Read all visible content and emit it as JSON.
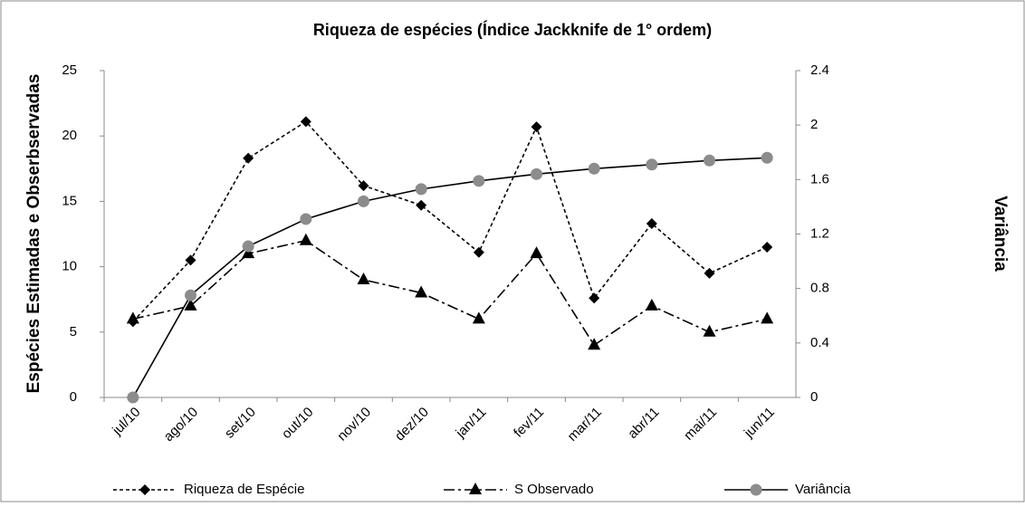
{
  "chart_data": {
    "type": "line",
    "title": "Riqueza de espécies (Índice Jackknife de 1° ordem)",
    "y_label": "Espécies Estimadas e Obserbservadas",
    "y2_label": "Variância",
    "categories": [
      "jul/10",
      "ago/10",
      "set/10",
      "out/10",
      "nov/10",
      "dez/10",
      "jan/11",
      "fev/11",
      "mar/11",
      "abr/11",
      "mai/11",
      "jun/11"
    ],
    "series": [
      {
        "name": "Riqueza de Espécie",
        "color": "#000000",
        "marker": "diamond",
        "dash": "dashed",
        "values": [
          5.8,
          10.5,
          18.3,
          21.1,
          16.2,
          14.7,
          11.1,
          20.7,
          7.6,
          13.3,
          9.5,
          11.5
        ]
      },
      {
        "name": "S Observado",
        "color": "#000000",
        "marker": "triangle",
        "dash": "dashdot",
        "values": [
          6,
          7,
          11,
          12,
          9,
          8,
          6,
          11,
          4,
          7,
          5,
          6
        ]
      },
      {
        "name": "Variância",
        "color": "#000000",
        "marker_color": "#8c8c8c",
        "marker": "circle",
        "dash": "solid",
        "axis": "y2",
        "values": [
          0,
          0.75,
          1.11,
          1.31,
          1.44,
          1.53,
          1.59,
          1.64,
          1.68,
          1.71,
          1.74,
          1.76
        ]
      }
    ],
    "ylim": [
      0,
      25
    ],
    "yticks": [
      0,
      5,
      10,
      15,
      20,
      25
    ],
    "y2lim": [
      0,
      2.4
    ],
    "y2ticks": [
      0,
      0.4,
      0.8,
      1.2,
      1.6,
      2,
      2.4
    ],
    "legend": "bottom"
  }
}
